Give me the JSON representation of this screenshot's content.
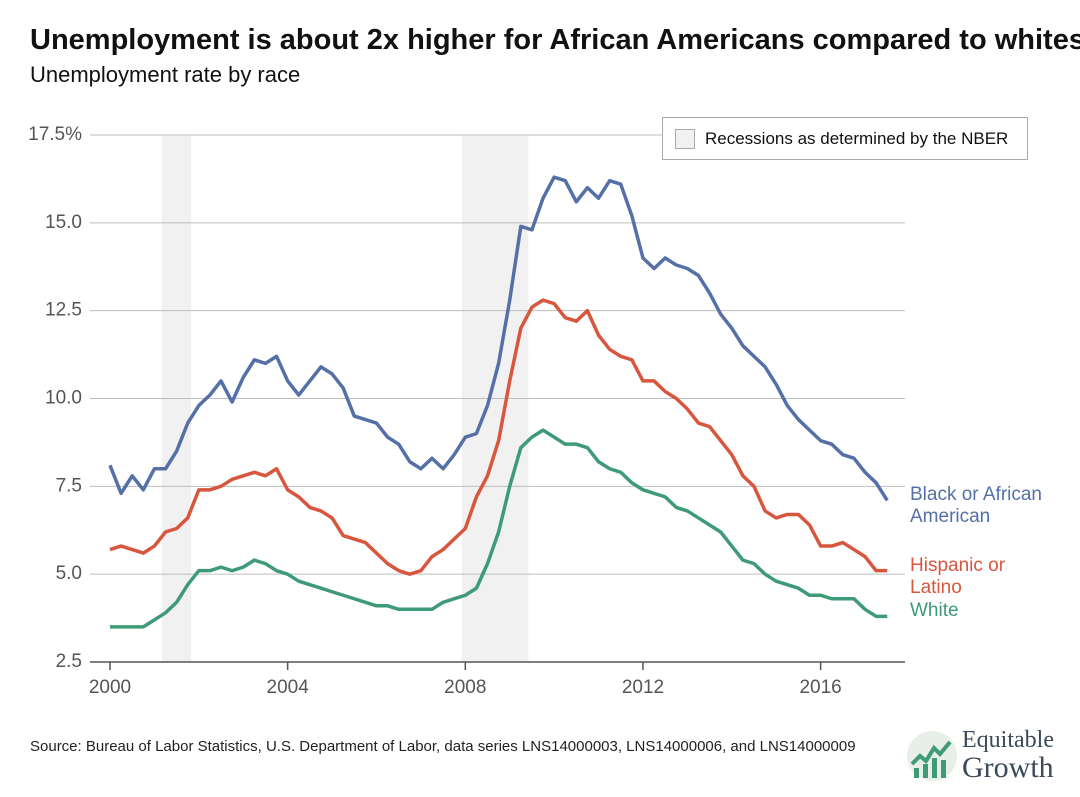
{
  "chart_data": {
    "type": "line",
    "title": "Unemployment is about 2x higher for African Americans compared to whites",
    "subtitle": "Unemployment rate by race",
    "x": [
      2000,
      2000.25,
      2000.5,
      2000.75,
      2001,
      2001.25,
      2001.5,
      2001.75,
      2002,
      2002.25,
      2002.5,
      2002.75,
      2003,
      2003.25,
      2003.5,
      2003.75,
      2004,
      2004.25,
      2004.5,
      2004.75,
      2005,
      2005.25,
      2005.5,
      2005.75,
      2006,
      2006.25,
      2006.5,
      2006.75,
      2007,
      2007.25,
      2007.5,
      2007.75,
      2008,
      2008.25,
      2008.5,
      2008.75,
      2009,
      2009.25,
      2009.5,
      2009.75,
      2010,
      2010.25,
      2010.5,
      2010.75,
      2011,
      2011.25,
      2011.5,
      2011.75,
      2012,
      2012.25,
      2012.5,
      2012.75,
      2013,
      2013.25,
      2013.5,
      2013.75,
      2014,
      2014.25,
      2014.5,
      2014.75,
      2015,
      2015.25,
      2015.5,
      2015.75,
      2016,
      2016.25,
      2016.5,
      2016.75,
      2017,
      2017.25,
      2017.5
    ],
    "series": [
      {
        "name": "Black or African American",
        "color": "#5570a7",
        "values": [
          8.1,
          7.3,
          7.8,
          7.4,
          8.0,
          8.0,
          8.5,
          9.3,
          9.8,
          10.1,
          10.5,
          9.9,
          10.6,
          11.1,
          11.0,
          11.2,
          10.5,
          10.1,
          10.5,
          10.9,
          10.7,
          10.3,
          9.5,
          9.4,
          9.3,
          8.9,
          8.7,
          8.2,
          8.0,
          8.3,
          8.0,
          8.4,
          8.9,
          9.0,
          9.8,
          11.0,
          12.8,
          14.9,
          14.8,
          15.7,
          16.3,
          16.2,
          15.6,
          16.0,
          15.7,
          16.2,
          16.1,
          15.2,
          14.0,
          13.7,
          14.0,
          13.8,
          13.7,
          13.5,
          13.0,
          12.4,
          12.0,
          11.5,
          11.2,
          10.9,
          10.4,
          9.8,
          9.4,
          9.1,
          8.8,
          8.7,
          8.4,
          8.3,
          7.9,
          7.6,
          7.1
        ]
      },
      {
        "name": "Hispanic or Latino",
        "color": "#d8563e",
        "values": [
          5.7,
          5.8,
          5.7,
          5.6,
          5.8,
          6.2,
          6.3,
          6.6,
          7.4,
          7.4,
          7.5,
          7.7,
          7.8,
          7.9,
          7.8,
          8.0,
          7.4,
          7.2,
          6.9,
          6.8,
          6.6,
          6.1,
          6.0,
          5.9,
          5.6,
          5.3,
          5.1,
          5.0,
          5.1,
          5.5,
          5.7,
          6.0,
          6.3,
          7.2,
          7.8,
          8.8,
          10.5,
          12.0,
          12.6,
          12.8,
          12.7,
          12.3,
          12.2,
          12.5,
          11.8,
          11.4,
          11.2,
          11.1,
          10.5,
          10.5,
          10.2,
          10.0,
          9.7,
          9.3,
          9.2,
          8.8,
          8.4,
          7.8,
          7.5,
          6.8,
          6.6,
          6.7,
          6.7,
          6.4,
          5.8,
          5.8,
          5.9,
          5.7,
          5.5,
          5.1,
          5.1
        ]
      },
      {
        "name": "White",
        "color": "#3e9a77",
        "values": [
          3.5,
          3.5,
          3.5,
          3.5,
          3.7,
          3.9,
          4.2,
          4.7,
          5.1,
          5.1,
          5.2,
          5.1,
          5.2,
          5.4,
          5.3,
          5.1,
          5.0,
          4.8,
          4.7,
          4.6,
          4.5,
          4.4,
          4.3,
          4.2,
          4.1,
          4.1,
          4.0,
          4.0,
          4.0,
          4.0,
          4.2,
          4.3,
          4.4,
          4.6,
          5.3,
          6.2,
          7.5,
          8.6,
          8.9,
          9.1,
          8.9,
          8.7,
          8.7,
          8.6,
          8.2,
          8.0,
          7.9,
          7.6,
          7.4,
          7.3,
          7.2,
          6.9,
          6.8,
          6.6,
          6.4,
          6.2,
          5.8,
          5.4,
          5.3,
          5.0,
          4.8,
          4.7,
          4.6,
          4.4,
          4.4,
          4.3,
          4.3,
          4.3,
          4.0,
          3.8,
          3.8
        ]
      }
    ],
    "xlim": [
      1999.55,
      2017.9
    ],
    "xticks": [
      2000,
      2004,
      2008,
      2012,
      2016
    ],
    "ylim": [
      2.5,
      17.5
    ],
    "yticks": [
      2.5,
      {
        "value": 5,
        "label": "5.0"
      },
      7.5,
      {
        "value": 10,
        "label": "10.0"
      },
      12.5,
      {
        "value": 15,
        "label": "15.0"
      },
      {
        "value": 17.5,
        "label": "17.5%"
      }
    ],
    "grid": true,
    "recessions": [
      [
        2001.17,
        2001.83
      ],
      [
        2007.92,
        2009.42
      ]
    ],
    "recession_label": "Recessions as determined by the NBER",
    "source": "Source: Bureau of Labor Statistics, U.S. Department of Labor, data series LNS14000003, LNS14000006, and LNS14000009",
    "logo": [
      "Equitable",
      "Growth"
    ]
  }
}
